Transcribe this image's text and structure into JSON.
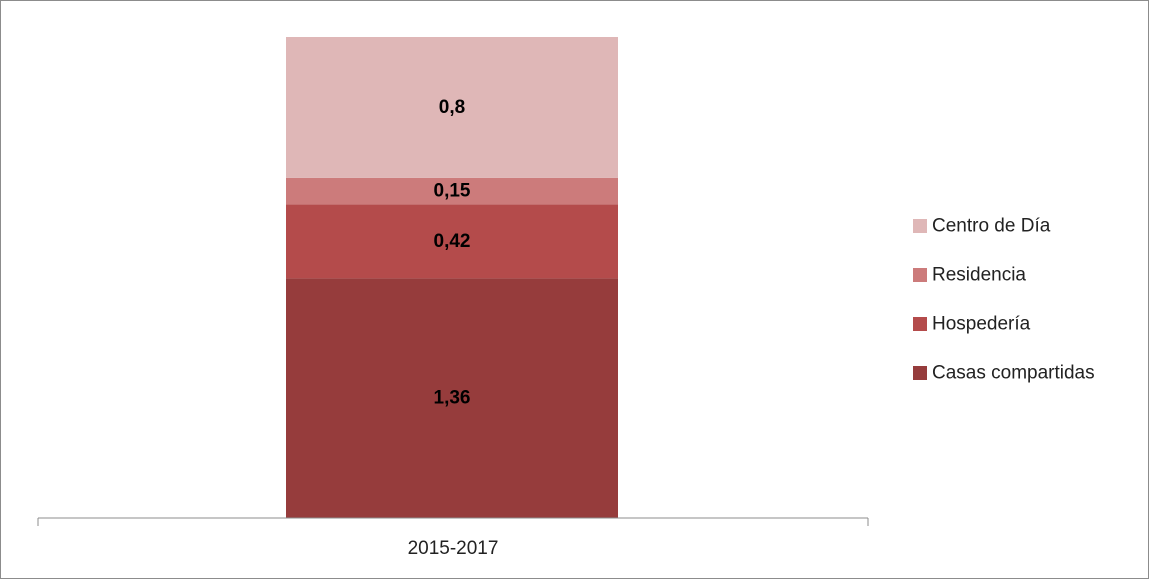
{
  "chart_data": {
    "type": "bar",
    "stacked": true,
    "categories": [
      "2015-2017"
    ],
    "series": [
      {
        "name": "Casas compartidas",
        "values": [
          1.36
        ],
        "label": "1,36",
        "color": "#963c3c"
      },
      {
        "name": "Hospedería",
        "values": [
          0.42
        ],
        "label": "0,42",
        "color": "#b44b4b"
      },
      {
        "name": "Residencia",
        "values": [
          0.15
        ],
        "label": "0,15",
        "color": "#cc7b7b"
      },
      {
        "name": "Centro de Día",
        "values": [
          0.8
        ],
        "label": "0,8",
        "color": "#dfb7b7"
      }
    ],
    "ylim": [
      0,
      2.73
    ],
    "legend_position": "right",
    "grid": false,
    "title": "",
    "xlabel": "",
    "ylabel": ""
  }
}
